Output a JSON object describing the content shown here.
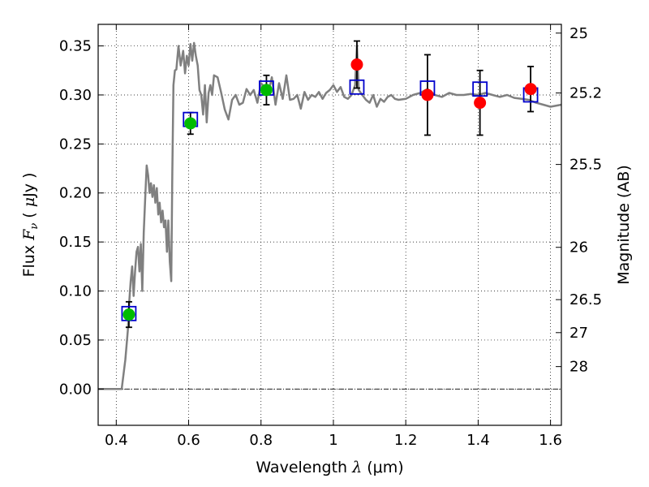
{
  "chart_data": {
    "type": "scatter",
    "title": "",
    "xlabel": "Wavelength  λ (μm)",
    "xlabel_parts": {
      "pre": "Wavelength  ",
      "sym": "λ",
      "post": " (μm)"
    },
    "ylabel": "Flux  F_ν  ( μJy )",
    "ylabel_parts": {
      "pre": "Flux  ",
      "sym": "F",
      "sub": "ν",
      "mid": "  ( ",
      "mu": "μ",
      "post": "Jy )"
    },
    "y2label": "Magnitude (AB)",
    "xlim": [
      0.35,
      1.63
    ],
    "ylim": [
      -0.037,
      0.372
    ],
    "grid": true,
    "x_ticks": [
      {
        "v": 0.4,
        "label": "0.4"
      },
      {
        "v": 0.6,
        "label": "0.6"
      },
      {
        "v": 0.8,
        "label": "0.8"
      },
      {
        "v": 1.0,
        "label": "1"
      },
      {
        "v": 1.2,
        "label": "1.2"
      },
      {
        "v": 1.4,
        "label": "1.4"
      },
      {
        "v": 1.6,
        "label": "1.6"
      }
    ],
    "y_ticks": [
      {
        "v": 0.0,
        "label": "0.00"
      },
      {
        "v": 0.05,
        "label": "0.05"
      },
      {
        "v": 0.1,
        "label": "0.10"
      },
      {
        "v": 0.15,
        "label": "0.15"
      },
      {
        "v": 0.2,
        "label": "0.20"
      },
      {
        "v": 0.25,
        "label": "0.25"
      },
      {
        "v": 0.3,
        "label": "0.30"
      },
      {
        "v": 0.35,
        "label": "0.35"
      }
    ],
    "y2_ticks": [
      {
        "mag": 25.0,
        "label": "25"
      },
      {
        "mag": 25.2,
        "label": "25.2"
      },
      {
        "mag": 25.5,
        "label": "25.5"
      },
      {
        "mag": 26.0,
        "label": "26"
      },
      {
        "mag": 26.5,
        "label": "26.5"
      },
      {
        "mag": 27.0,
        "label": "27"
      },
      {
        "mag": 28.0,
        "label": "28"
      }
    ],
    "colors": {
      "model": "#808080",
      "green": "#00bb00",
      "red": "#ff0000",
      "square": "#0000cc",
      "errorbar": "#000000"
    },
    "model_spectrum": [
      [
        0.35,
        0.0
      ],
      [
        0.415,
        0.0
      ],
      [
        0.425,
        0.03
      ],
      [
        0.432,
        0.06
      ],
      [
        0.436,
        0.09
      ],
      [
        0.44,
        0.11
      ],
      [
        0.444,
        0.125
      ],
      [
        0.448,
        0.095
      ],
      [
        0.452,
        0.12
      ],
      [
        0.456,
        0.14
      ],
      [
        0.46,
        0.145
      ],
      [
        0.464,
        0.12
      ],
      [
        0.468,
        0.148
      ],
      [
        0.472,
        0.1
      ],
      [
        0.476,
        0.16
      ],
      [
        0.48,
        0.195
      ],
      [
        0.484,
        0.228
      ],
      [
        0.488,
        0.218
      ],
      [
        0.492,
        0.2
      ],
      [
        0.496,
        0.21
      ],
      [
        0.5,
        0.196
      ],
      [
        0.504,
        0.208
      ],
      [
        0.508,
        0.19
      ],
      [
        0.512,
        0.205
      ],
      [
        0.516,
        0.178
      ],
      [
        0.52,
        0.19
      ],
      [
        0.524,
        0.17
      ],
      [
        0.528,
        0.182
      ],
      [
        0.532,
        0.165
      ],
      [
        0.536,
        0.172
      ],
      [
        0.54,
        0.14
      ],
      [
        0.544,
        0.172
      ],
      [
        0.548,
        0.13
      ],
      [
        0.552,
        0.11
      ],
      [
        0.555,
        0.22
      ],
      [
        0.558,
        0.31
      ],
      [
        0.562,
        0.325
      ],
      [
        0.566,
        0.326
      ],
      [
        0.572,
        0.35
      ],
      [
        0.578,
        0.33
      ],
      [
        0.585,
        0.345
      ],
      [
        0.59,
        0.322
      ],
      [
        0.595,
        0.34
      ],
      [
        0.6,
        0.33
      ],
      [
        0.605,
        0.352
      ],
      [
        0.61,
        0.335
      ],
      [
        0.615,
        0.353
      ],
      [
        0.62,
        0.34
      ],
      [
        0.625,
        0.33
      ],
      [
        0.63,
        0.305
      ],
      [
        0.635,
        0.3
      ],
      [
        0.64,
        0.28
      ],
      [
        0.645,
        0.31
      ],
      [
        0.65,
        0.272
      ],
      [
        0.655,
        0.302
      ],
      [
        0.66,
        0.31
      ],
      [
        0.665,
        0.3
      ],
      [
        0.67,
        0.32
      ],
      [
        0.68,
        0.318
      ],
      [
        0.69,
        0.302
      ],
      [
        0.7,
        0.285
      ],
      [
        0.71,
        0.275
      ],
      [
        0.72,
        0.295
      ],
      [
        0.73,
        0.3
      ],
      [
        0.74,
        0.29
      ],
      [
        0.75,
        0.292
      ],
      [
        0.76,
        0.306
      ],
      [
        0.77,
        0.3
      ],
      [
        0.78,
        0.305
      ],
      [
        0.79,
        0.292
      ],
      [
        0.8,
        0.312
      ],
      [
        0.81,
        0.308
      ],
      [
        0.82,
        0.302
      ],
      [
        0.83,
        0.318
      ],
      [
        0.84,
        0.29
      ],
      [
        0.85,
        0.312
      ],
      [
        0.86,
        0.296
      ],
      [
        0.87,
        0.32
      ],
      [
        0.88,
        0.295
      ],
      [
        0.89,
        0.296
      ],
      [
        0.9,
        0.3
      ],
      [
        0.91,
        0.286
      ],
      [
        0.92,
        0.303
      ],
      [
        0.93,
        0.295
      ],
      [
        0.94,
        0.3
      ],
      [
        0.95,
        0.298
      ],
      [
        0.96,
        0.303
      ],
      [
        0.97,
        0.296
      ],
      [
        0.98,
        0.302
      ],
      [
        0.99,
        0.305
      ],
      [
        1.0,
        0.31
      ],
      [
        1.01,
        0.303
      ],
      [
        1.02,
        0.308
      ],
      [
        1.03,
        0.298
      ],
      [
        1.04,
        0.296
      ],
      [
        1.05,
        0.3
      ],
      [
        1.06,
        0.31
      ],
      [
        1.065,
        0.35
      ],
      [
        1.07,
        0.305
      ],
      [
        1.08,
        0.3
      ],
      [
        1.09,
        0.295
      ],
      [
        1.1,
        0.292
      ],
      [
        1.11,
        0.3
      ],
      [
        1.12,
        0.288
      ],
      [
        1.13,
        0.296
      ],
      [
        1.14,
        0.293
      ],
      [
        1.15,
        0.298
      ],
      [
        1.16,
        0.3
      ],
      [
        1.17,
        0.296
      ],
      [
        1.18,
        0.295
      ],
      [
        1.2,
        0.296
      ],
      [
        1.22,
        0.3
      ],
      [
        1.24,
        0.302
      ],
      [
        1.26,
        0.306
      ],
      [
        1.28,
        0.3
      ],
      [
        1.3,
        0.298
      ],
      [
        1.32,
        0.302
      ],
      [
        1.34,
        0.3
      ],
      [
        1.36,
        0.3
      ],
      [
        1.38,
        0.301
      ],
      [
        1.4,
        0.3
      ],
      [
        1.42,
        0.302
      ],
      [
        1.44,
        0.3
      ],
      [
        1.46,
        0.298
      ],
      [
        1.48,
        0.3
      ],
      [
        1.5,
        0.297
      ],
      [
        1.52,
        0.296
      ],
      [
        1.54,
        0.295
      ],
      [
        1.56,
        0.292
      ],
      [
        1.58,
        0.29
      ],
      [
        1.6,
        0.288
      ],
      [
        1.63,
        0.29
      ]
    ],
    "observed_points": [
      {
        "x": 0.435,
        "y": 0.076,
        "err": 0.013,
        "color": "green"
      },
      {
        "x": 0.605,
        "y": 0.271,
        "err": 0.011,
        "color": "green"
      },
      {
        "x": 0.815,
        "y": 0.305,
        "err": 0.015,
        "color": "green"
      },
      {
        "x": 1.065,
        "y": 0.331,
        "err": 0.024,
        "color": "red"
      },
      {
        "x": 1.26,
        "y": 0.3,
        "err": 0.041,
        "color": "red"
      },
      {
        "x": 1.405,
        "y": 0.292,
        "err": 0.033,
        "color": "red"
      },
      {
        "x": 1.545,
        "y": 0.306,
        "err": 0.023,
        "color": "red"
      }
    ],
    "model_photometry": [
      {
        "x": 0.435,
        "y": 0.077
      },
      {
        "x": 0.605,
        "y": 0.275
      },
      {
        "x": 0.815,
        "y": 0.307
      },
      {
        "x": 1.065,
        "y": 0.308
      },
      {
        "x": 1.26,
        "y": 0.307
      },
      {
        "x": 1.405,
        "y": 0.306
      },
      {
        "x": 1.545,
        "y": 0.3
      }
    ]
  }
}
